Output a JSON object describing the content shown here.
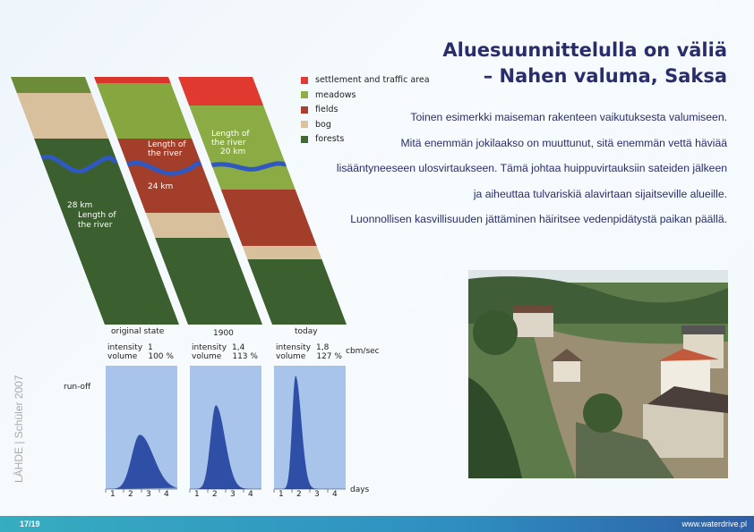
{
  "title": {
    "line1": "Aluesuunnittelulla on väliä",
    "line2": "– Nahen valuma, Saksa"
  },
  "paragraphs": [
    "Toinen esimerkki maiseman rakenteen vaikutuksesta valumiseen.",
    "Mitä enemmän jokilaakso on muuttunut, sitä enemmän vettä häviää",
    "lisääntyneeseen ulosvirtaukseen. Tämä johtaa huippuvirtauksiin sateiden jälkeen",
    "ja aiheuttaa tulvariskiä alavirtaan sijaitseville alueille.",
    "Luonnollisen kasvillisuuden jättäminen häiritsee vedenpidätystä paikan päällä."
  ],
  "legend": [
    {
      "label": "settlement and traffic area",
      "color": "#e23b35"
    },
    {
      "label": "meadows",
      "color": "#8fae48"
    },
    {
      "label": "fields",
      "color": "#a8412e"
    },
    {
      "label": "bog",
      "color": "#dcc3a0"
    },
    {
      "label": "forests",
      "color": "#3f6a36"
    }
  ],
  "strips": [
    {
      "label": "original state",
      "river_l1": "28 km",
      "river_l2": "Length of",
      "river_l3": "the river",
      "intensity": "1",
      "volume": "100 %"
    },
    {
      "label": "1900",
      "river_l1": "Length of",
      "river_l2": "the river",
      "river_l3": "24 km",
      "intensity": "1,4",
      "volume": "113 %"
    },
    {
      "label": "today",
      "river_l1": "Length of",
      "river_l2": "the river",
      "river_l3": "20 km",
      "intensity": "1,8",
      "volume": "127 %"
    }
  ],
  "labels": {
    "intensity": "intensity",
    "volume": "volume",
    "unit": "cbm/sec",
    "runoff": "run-off",
    "days": "days"
  },
  "day_ticks": [
    "1",
    "2",
    "3",
    "4"
  ],
  "source": "LÄHDE | Schüler 2007",
  "footer": {
    "page": "17/19",
    "url": "www.waterdrive.pl"
  }
}
